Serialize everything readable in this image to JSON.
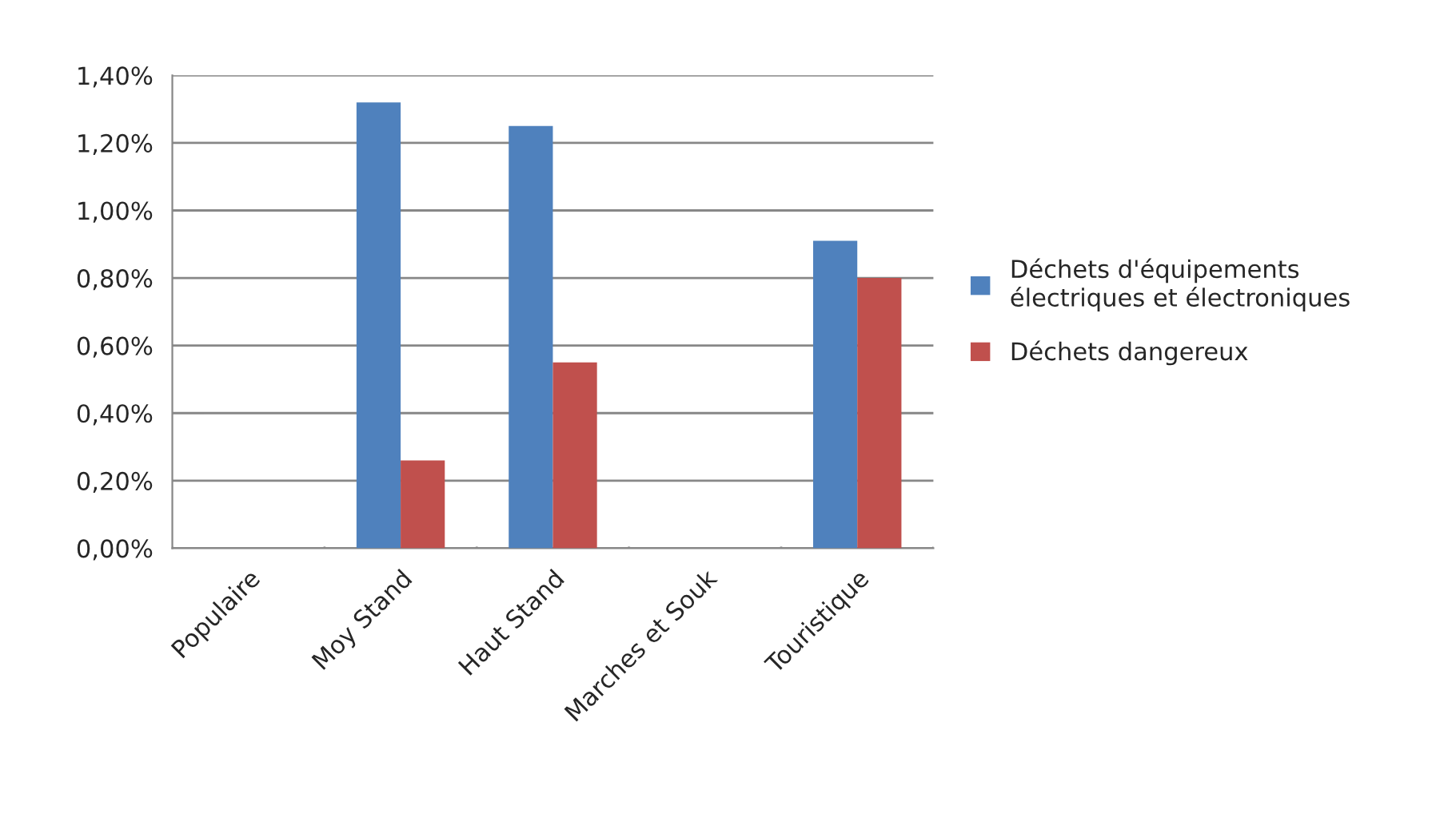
{
  "chart_data": {
    "type": "bar",
    "categories": [
      "Populaire",
      "Moy Stand",
      "Haut Stand",
      "Marches et Souk",
      "Touristique"
    ],
    "series": [
      {
        "name": "Déchets d'équipements électriques et électroniques",
        "color": "#4f81bd",
        "values": [
          null,
          1.32,
          1.25,
          null,
          0.91
        ]
      },
      {
        "name": "Déchets dangereux",
        "color": "#c0504d",
        "values": [
          null,
          0.26,
          0.55,
          null,
          0.8
        ]
      }
    ],
    "ylim": [
      0,
      1.4
    ],
    "yticks": [
      {
        "value": 0,
        "label": "0,00%"
      },
      {
        "value": 0.2,
        "label": "0,20%"
      },
      {
        "value": 0.4,
        "label": "0,40%"
      },
      {
        "value": 0.6,
        "label": "0,60%"
      },
      {
        "value": 0.8,
        "label": "0,80%"
      },
      {
        "value": 1.0,
        "label": "1,00%"
      },
      {
        "value": 1.2,
        "label": "1,20%"
      },
      {
        "value": 1.4,
        "label": "1,40%"
      }
    ],
    "grid": "y",
    "legend": "right"
  }
}
